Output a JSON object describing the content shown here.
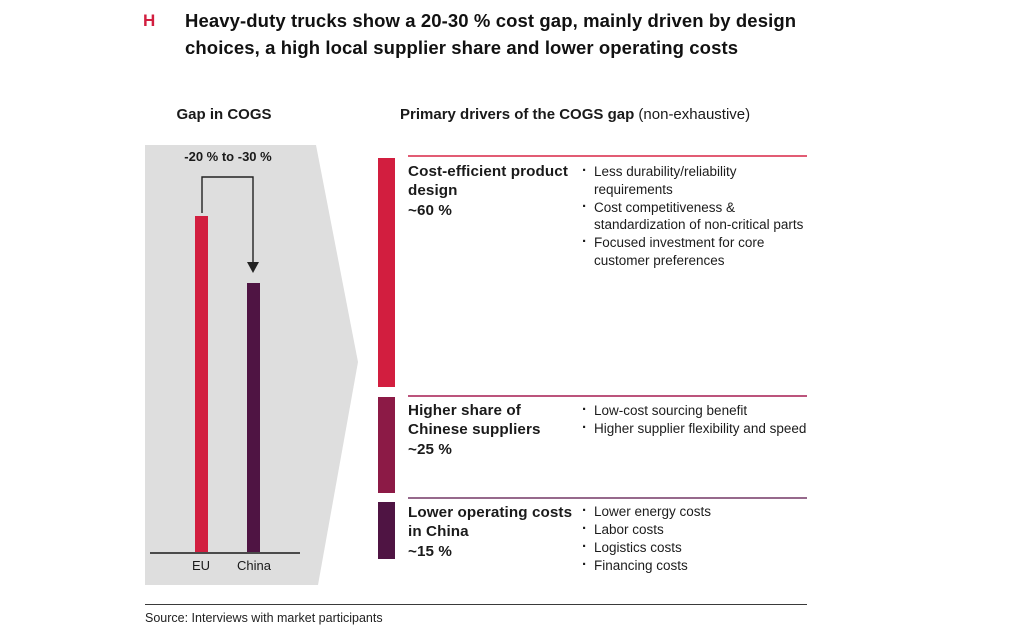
{
  "slide": {
    "marker": "H",
    "title_lines": [
      "Heavy-duty trucks show a 20-30 % cost gap, mainly driven by design",
      "choices, a high local supplier share and lower operating costs"
    ]
  },
  "colors": {
    "accent_red": "#d21e3f",
    "maroon": "#8c1a46",
    "dark_purple": "#4f1443",
    "funnel_gray": "#dedede",
    "line_dark": "#222222"
  },
  "left_chart": {
    "heading": "Gap in COGS"
  },
  "right_panel": {
    "heading_bold": "Primary drivers of the COGS gap",
    "heading_regular": " (non-exhaustive)",
    "sections": [
      {
        "title": "Cost-efficient product design",
        "value": "~60 %",
        "bar_color": "#d21e3f",
        "rule_color": "#e25c74",
        "bullets": [
          "Less durability/reliability requirements",
          "Cost competitiveness & standardization of non-critical parts",
          "Focused investment for core customer preferences"
        ]
      },
      {
        "title": "Higher share of Chinese suppliers",
        "value": "~25 %",
        "bar_color": "#8c1a46",
        "rule_color": "#bc547c",
        "bullets": [
          "Low-cost sourcing benefit",
          "Higher supplier flexibility and speed"
        ]
      },
      {
        "title": "Lower operating costs in China",
        "value": "~15 %",
        "bar_color": "#4f1443",
        "rule_color": "#96698c",
        "bullets": [
          "Lower energy costs",
          "Labor costs",
          "Logistics costs",
          "Financing costs"
        ]
      }
    ]
  },
  "footer": {
    "source": "Source: Interviews with market participants"
  },
  "chart_data": [
    {
      "type": "bar",
      "title": "Gap in COGS",
      "categories": [
        "EU",
        "China"
      ],
      "values": [
        100,
        80
      ],
      "annotation": "-20 % to -30 %",
      "xlabel": "",
      "ylabel": "",
      "ylim": [
        0,
        100
      ],
      "colors": [
        "#d21e3f",
        "#4f1443"
      ],
      "grid": false,
      "legend": "none"
    },
    {
      "type": "bar",
      "title": "Primary drivers of the COGS gap (non-exhaustive)",
      "categories": [
        "Cost-efficient product design",
        "Higher share of Chinese suppliers",
        "Lower operating costs in China"
      ],
      "values": [
        60,
        25,
        15
      ],
      "unit": "%",
      "colors": [
        "#d21e3f",
        "#8c1a46",
        "#4f1443"
      ],
      "grid": false,
      "legend": "none"
    }
  ]
}
